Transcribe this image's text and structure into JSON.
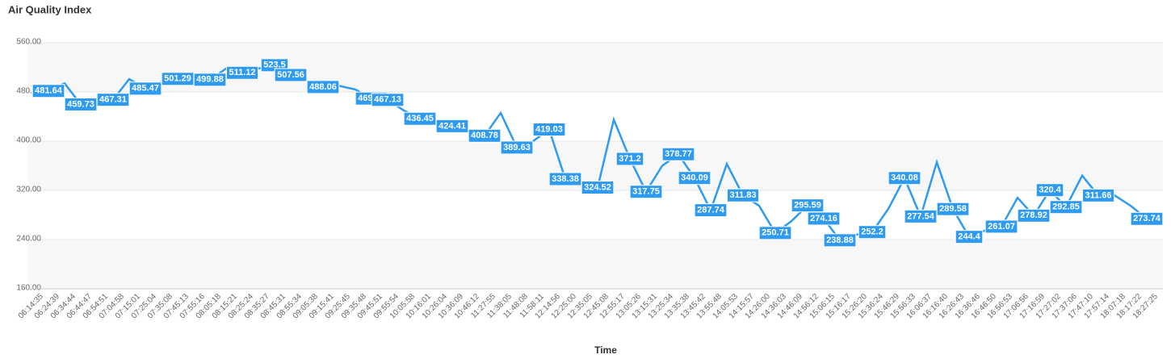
{
  "chart_data": {
    "type": "line",
    "title": "Air Quality Index",
    "x_label": "Time",
    "categories": [
      "06:14:35",
      "06:24:39",
      "06:34:44",
      "06:44:47",
      "06:54:51",
      "07:04:58",
      "07:15:01",
      "07:25:04",
      "07:35:08",
      "07:45:13",
      "07:55:16",
      "08:05:18",
      "08:15:21",
      "08:25:24",
      "08:35:27",
      "08:45:31",
      "08:55:34",
      "09:05:38",
      "09:15:41",
      "09:25:45",
      "09:35:48",
      "09:45:51",
      "09:55:54",
      "10:05:58",
      "10:16:01",
      "10:26:04",
      "10:36:09",
      "10:46:12",
      "11:27:55",
      "11:38:05",
      "11:48:08",
      "11:58:11",
      "12:14:56",
      "12:25:00",
      "12:35:05",
      "12:45:08",
      "12:55:17",
      "13:05:26",
      "13:15:31",
      "13:25:34",
      "13:35:38",
      "13:45:42",
      "13:55:48",
      "14:05:53",
      "14:15:57",
      "14:26:00",
      "14:36:03",
      "14:46:09",
      "14:56:12",
      "15:06:15",
      "15:16:17",
      "15:26:20",
      "15:36:24",
      "15:46:29",
      "15:56:33",
      "16:06:37",
      "16:16:40",
      "16:26:43",
      "16:36:46",
      "16:46:50",
      "16:56:53",
      "17:06:56",
      "17:16:59",
      "17:27:02",
      "17:37:06",
      "17:47:10",
      "17:57:14",
      "18:07:18",
      "18:17:22",
      "18:27:25"
    ],
    "values": [
      482,
      481.64,
      494,
      459.73,
      462,
      467.31,
      501,
      485.47,
      496,
      501.29,
      498,
      499.88,
      518,
      511.12,
      518,
      523.5,
      507.56,
      498,
      488.06,
      490,
      484,
      469.27,
      467.13,
      450,
      436.45,
      430,
      424.41,
      415,
      408.78,
      446,
      389.63,
      400,
      419.03,
      338.38,
      330,
      324.52,
      435,
      371.2,
      317.75,
      360,
      378.77,
      340.09,
      287.74,
      363,
      311.83,
      295,
      250.71,
      270,
      295.59,
      274.16,
      238.88,
      248,
      252.2,
      290,
      340.08,
      277.54,
      366,
      289.58,
      244.4,
      255,
      261.07,
      308,
      278.92,
      320.4,
      292.85,
      344,
      311.66,
      312,
      295,
      273.74
    ],
    "value_labels": [
      null,
      "481.64",
      null,
      "459.73",
      null,
      "467.31",
      null,
      "485.47",
      null,
      "501.29",
      null,
      "499.88",
      null,
      "511.12",
      null,
      "523.5",
      "507.56",
      null,
      "488.06",
      null,
      null,
      "469.27",
      "467.13",
      null,
      "436.45",
      null,
      "424.41",
      null,
      "408.78",
      null,
      "389.63",
      null,
      "419.03",
      "338.38",
      null,
      "324.52",
      null,
      "371.2",
      "317.75",
      null,
      "378.77",
      "340.09",
      "287.74",
      null,
      "311.83",
      null,
      "250.71",
      null,
      "295.59",
      "274.16",
      "238.88",
      null,
      "252.2",
      null,
      "340.08",
      "277.54",
      null,
      "289.58",
      "244.4",
      null,
      "261.07",
      null,
      "278.92",
      "320.4",
      "292.85",
      null,
      "311.66",
      null,
      null,
      "273.74"
    ],
    "color": "#2e9bf0",
    "ylim": [
      160,
      560
    ],
    "yticks": [
      {
        "value": 160,
        "label": "160.00"
      },
      {
        "value": 240,
        "label": "240.00"
      },
      {
        "value": 320,
        "label": "320.00"
      },
      {
        "value": 400,
        "label": "400.00"
      },
      {
        "value": 480,
        "label": "480.00"
      },
      {
        "value": 560,
        "label": "560.00"
      }
    ],
    "grid": true
  }
}
